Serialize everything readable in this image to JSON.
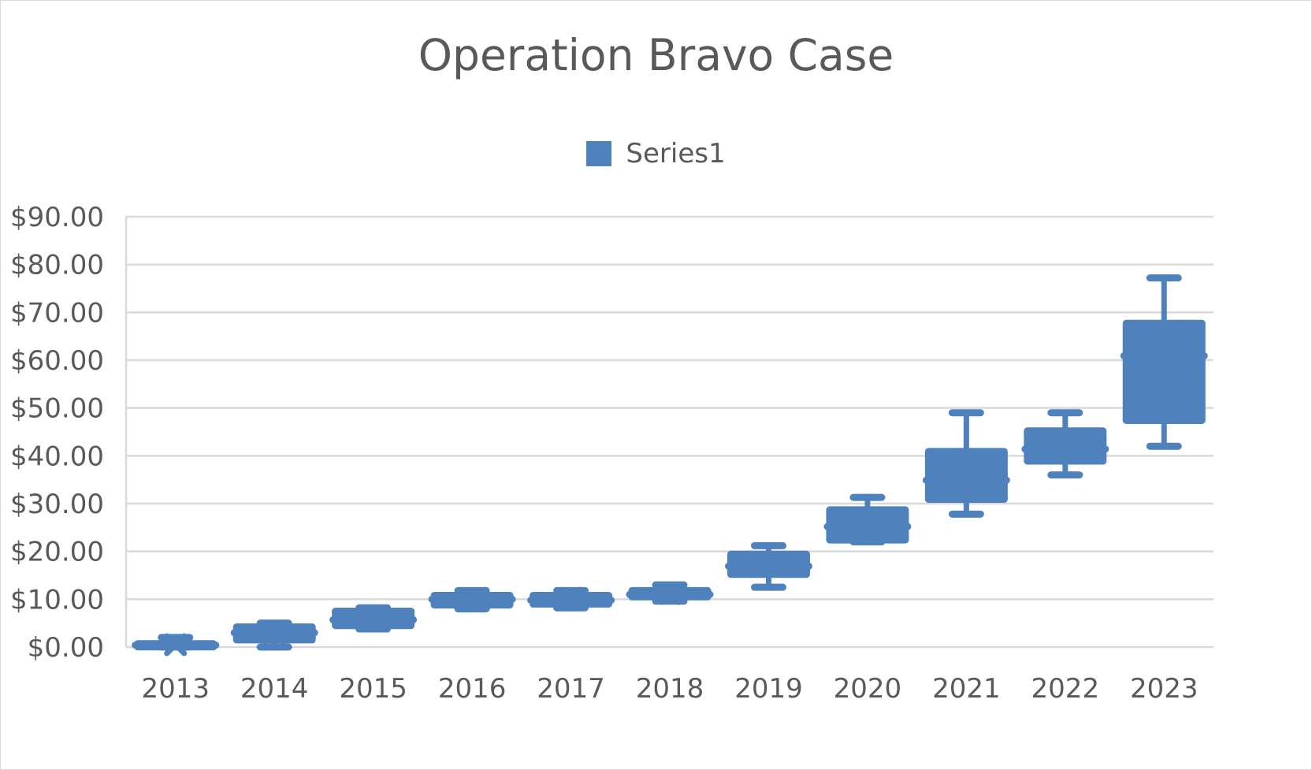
{
  "chart_data": {
    "type": "box",
    "title": "Operation Bravo Case",
    "xlabel": "",
    "ylabel": "",
    "ylim": [
      0,
      90
    ],
    "ytick_step": 10,
    "ytick_labels": [
      "$0.00",
      "$10.00",
      "$20.00",
      "$30.00",
      "$40.00",
      "$50.00",
      "$60.00",
      "$70.00",
      "$80.00",
      "$90.00"
    ],
    "grid": true,
    "legend_position": "top",
    "categories": [
      "2013",
      "2014",
      "2015",
      "2016",
      "2017",
      "2018",
      "2019",
      "2020",
      "2021",
      "2022",
      "2023"
    ],
    "series": [
      {
        "name": "Series1",
        "color": "#4f81bd",
        "boxes": [
          {
            "min": 0.0,
            "q1": 0.1,
            "median": 0.4,
            "mean": 0.5,
            "q3": 0.7,
            "max": 2.0
          },
          {
            "min": 0.0,
            "q1": 1.5,
            "median": 3.0,
            "mean": 3.0,
            "q3": 4.2,
            "max": 5.0
          },
          {
            "min": 3.8,
            "q1": 4.5,
            "median": 5.7,
            "mean": 6.0,
            "q3": 7.5,
            "max": 8.2
          },
          {
            "min": 8.0,
            "q1": 8.8,
            "median": 10.0,
            "mean": 10.0,
            "q3": 10.8,
            "max": 11.8
          },
          {
            "min": 8.2,
            "q1": 9.0,
            "median": 9.8,
            "mean": 10.2,
            "q3": 10.8,
            "max": 11.8
          },
          {
            "min": 9.6,
            "q1": 10.5,
            "median": 11.0,
            "mean": 11.2,
            "q3": 11.8,
            "max": 13.0
          },
          {
            "min": 12.5,
            "q1": 15.2,
            "median": 16.9,
            "mean": 17.2,
            "q3": 19.4,
            "max": 21.2
          },
          {
            "min": 22.0,
            "q1": 22.4,
            "median": 25.2,
            "mean": 25.5,
            "q3": 28.7,
            "max": 31.3
          },
          {
            "min": 27.8,
            "q1": 30.9,
            "median": 34.9,
            "mean": 36.0,
            "q3": 40.9,
            "max": 49.0
          },
          {
            "min": 36.0,
            "q1": 38.9,
            "median": 41.4,
            "mean": 42.2,
            "q3": 45.2,
            "max": 49.0
          },
          {
            "min": 42.0,
            "q1": 47.4,
            "median": 60.9,
            "mean": 57.0,
            "q3": 67.7,
            "max": 77.2
          }
        ]
      }
    ]
  }
}
